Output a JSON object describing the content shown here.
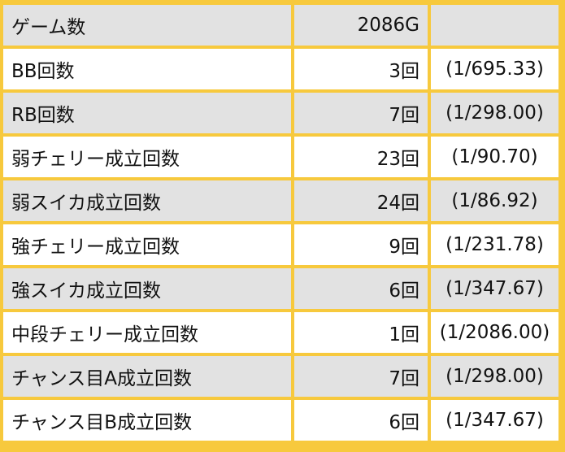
{
  "rows": [
    {
      "label": "ゲーム数",
      "count": "2086G",
      "rate": ""
    },
    {
      "label": "BB回数",
      "count": "3回",
      "rate": "(1/695.33)"
    },
    {
      "label": "RB回数",
      "count": "7回",
      "rate": "(1/298.00)"
    },
    {
      "label": "弱チェリー成立回数",
      "count": "23回",
      "rate": "(1/90.70)"
    },
    {
      "label": "弱スイカ成立回数",
      "count": "24回",
      "rate": "(1/86.92)"
    },
    {
      "label": "強チェリー成立回数",
      "count": "9回",
      "rate": "(1/231.78)"
    },
    {
      "label": "強スイカ成立回数",
      "count": "6回",
      "rate": "(1/347.67)"
    },
    {
      "label": "中段チェリー成立回数",
      "count": "1回",
      "rate": "(1/2086.00)"
    },
    {
      "label": "チャンス目A成立回数",
      "count": "7回",
      "rate": "(1/298.00)"
    },
    {
      "label": "チャンス目B成立回数",
      "count": "6回",
      "rate": "(1/347.67)"
    }
  ],
  "colors": {
    "background": "#f7c93d",
    "row_gray": "#e2e2e2",
    "row_white": "#ffffff"
  }
}
